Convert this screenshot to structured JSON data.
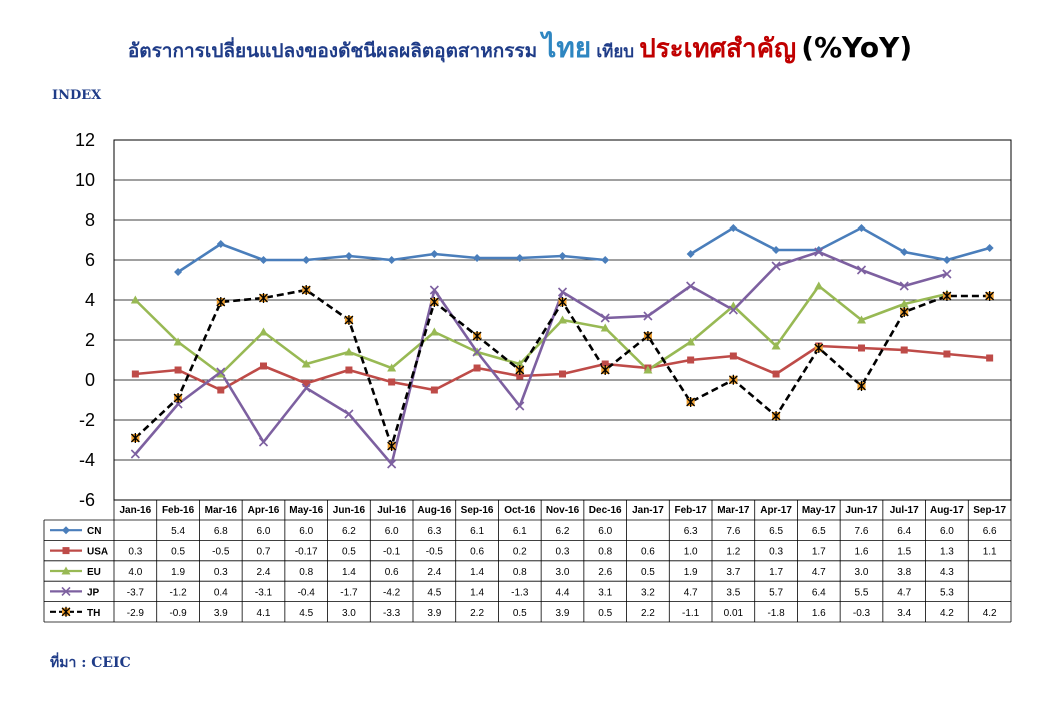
{
  "title": {
    "part1": "อัตราการเปลี่ยนแปลงของดัชนีผลผลิตอุตสาหกรรม",
    "part2": "ไทย",
    "part3": "เทียบ",
    "part4": "ประเทศสำคัญ",
    "part5": "(%YoY)"
  },
  "source": "ที่มา : CEIC",
  "chart_data": {
    "type": "line",
    "ylabel": "INDEX",
    "ylim": [
      -6,
      12
    ],
    "yticks": [
      12,
      10,
      8,
      6,
      4,
      2,
      0,
      -2,
      -4,
      -6
    ],
    "grid": true,
    "legend": "table-below",
    "categories": [
      "Jan-16",
      "Feb-16",
      "Mar-16",
      "Apr-16",
      "May-16",
      "Jun-16",
      "Jul-16",
      "Aug-16",
      "Sep-16",
      "Oct-16",
      "Nov-16",
      "Dec-16",
      "Jan-17",
      "Feb-17",
      "Mar-17",
      "Apr-17",
      "May-17",
      "Jun-17",
      "Jul-17",
      "Aug-17",
      "Sep-17"
    ],
    "series": [
      {
        "name": "CN",
        "color": "#4a7ebb",
        "marker": "diamond",
        "dashed": false,
        "values": [
          null,
          5.4,
          6.8,
          6.0,
          6.0,
          6.2,
          6.0,
          6.3,
          6.1,
          6.1,
          6.2,
          6.0,
          null,
          6.3,
          7.6,
          6.5,
          6.5,
          7.6,
          6.4,
          6.0,
          6.6
        ],
        "labels": [
          "",
          "5.4",
          "6.8",
          "6.0",
          "6.0",
          "6.2",
          "6.0",
          "6.3",
          "6.1",
          "6.1",
          "6.2",
          "6.0",
          "",
          "6.3",
          "7.6",
          "6.5",
          "6.5",
          "7.6",
          "6.4",
          "6.0",
          "6.6"
        ]
      },
      {
        "name": "USA",
        "color": "#be4b48",
        "marker": "square",
        "dashed": false,
        "values": [
          0.3,
          0.5,
          -0.5,
          0.7,
          -0.17,
          0.5,
          -0.1,
          -0.5,
          0.6,
          0.2,
          0.3,
          0.8,
          0.6,
          1.0,
          1.2,
          0.3,
          1.7,
          1.6,
          1.5,
          1.3,
          1.1
        ],
        "labels": [
          "0.3",
          "0.5",
          "-0.5",
          "0.7",
          "-0.17",
          "0.5",
          "-0.1",
          "-0.5",
          "0.6",
          "0.2",
          "0.3",
          "0.8",
          "0.6",
          "1.0",
          "1.2",
          "0.3",
          "1.7",
          "1.6",
          "1.5",
          "1.3",
          "1.1"
        ]
      },
      {
        "name": "EU",
        "color": "#98b954",
        "marker": "triangle",
        "dashed": false,
        "values": [
          4.0,
          1.9,
          0.3,
          2.4,
          0.8,
          1.4,
          0.6,
          2.4,
          1.4,
          0.8,
          3.0,
          2.6,
          0.5,
          1.9,
          3.7,
          1.7,
          4.7,
          3.0,
          3.8,
          4.3,
          null
        ],
        "labels": [
          "4.0",
          "1.9",
          "0.3",
          "2.4",
          "0.8",
          "1.4",
          "0.6",
          "2.4",
          "1.4",
          "0.8",
          "3.0",
          "2.6",
          "0.5",
          "1.9",
          "3.7",
          "1.7",
          "4.7",
          "3.0",
          "3.8",
          "4.3",
          ""
        ]
      },
      {
        "name": "JP",
        "color": "#7d60a0",
        "marker": "x",
        "dashed": false,
        "values": [
          -3.7,
          -1.2,
          0.4,
          -3.1,
          -0.4,
          -1.7,
          -4.2,
          4.5,
          1.4,
          -1.3,
          4.4,
          3.1,
          3.2,
          4.7,
          3.5,
          5.7,
          6.4,
          5.5,
          4.7,
          5.3,
          null
        ],
        "labels": [
          "-3.7",
          "-1.2",
          "0.4",
          "-3.1",
          "-0.4",
          "-1.7",
          "-4.2",
          "4.5",
          "1.4",
          "-1.3",
          "4.4",
          "3.1",
          "3.2",
          "4.7",
          "3.5",
          "5.7",
          "6.4",
          "5.5",
          "4.7",
          "5.3",
          ""
        ]
      },
      {
        "name": "TH",
        "color": "#000000",
        "marker": "star",
        "dashed": true,
        "values": [
          -2.9,
          -0.9,
          3.9,
          4.1,
          4.5,
          3.0,
          -3.3,
          3.9,
          2.2,
          0.5,
          3.9,
          0.5,
          2.2,
          -1.1,
          0.01,
          -1.8,
          1.6,
          -0.3,
          3.4,
          4.2,
          4.2
        ],
        "labels": [
          "-2.9",
          "-0.9",
          "3.9",
          "4.1",
          "4.5",
          "3.0",
          "-3.3",
          "3.9",
          "2.2",
          "0.5",
          "3.9",
          "0.5",
          "2.2",
          "-1.1",
          "0.01",
          "-1.8",
          "1.6",
          "-0.3",
          "3.4",
          "4.2",
          "4.2"
        ]
      }
    ]
  }
}
